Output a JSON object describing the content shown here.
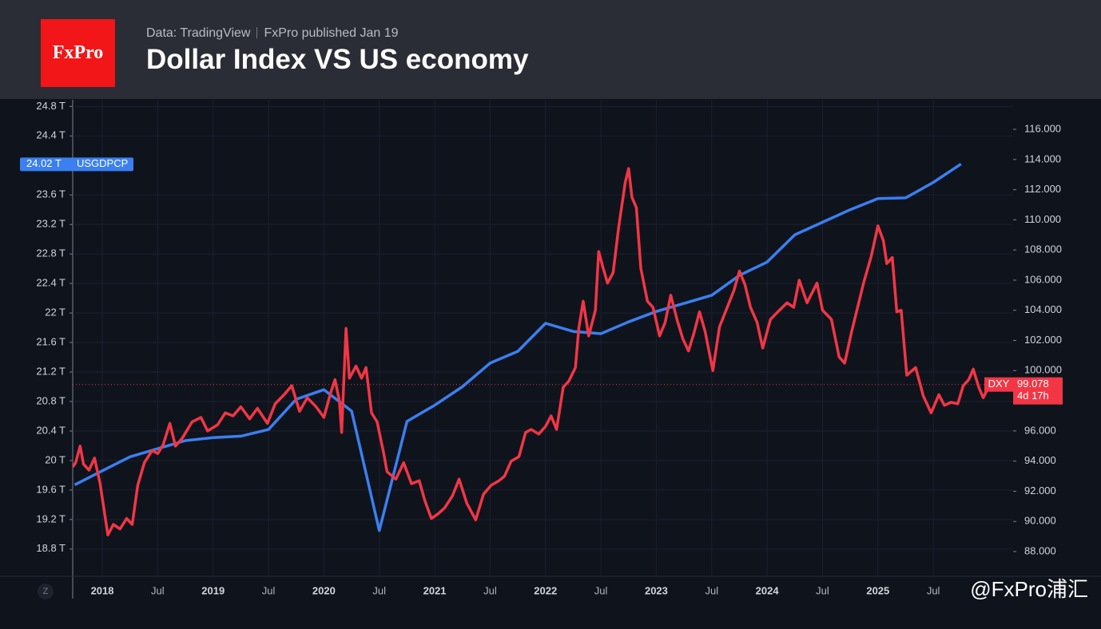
{
  "header": {
    "logo": "FxPro",
    "source": "Data: TradingView",
    "published": "FxPro published Jan 19"
  },
  "watermark": "@FxPro浦汇",
  "zoom_button": "Z",
  "chart_data": {
    "type": "line",
    "title": "Dollar Index VS US economy",
    "xlim": [
      2017.733,
      2026.22
    ],
    "xticks": [
      {
        "value": 2018,
        "label": "2018"
      },
      {
        "value": 2018.5,
        "label": "Jul"
      },
      {
        "value": 2019,
        "label": "2019"
      },
      {
        "value": 2019.5,
        "label": "Jul"
      },
      {
        "value": 2020,
        "label": "2020"
      },
      {
        "value": 2020.5,
        "label": "Jul"
      },
      {
        "value": 2021,
        "label": "2021"
      },
      {
        "value": 2021.5,
        "label": "Jul"
      },
      {
        "value": 2022,
        "label": "2022"
      },
      {
        "value": 2022.5,
        "label": "Jul"
      },
      {
        "value": 2023,
        "label": "2023"
      },
      {
        "value": 2023.5,
        "label": "Jul"
      },
      {
        "value": 2024,
        "label": "2024"
      },
      {
        "value": 2024.5,
        "label": "Jul"
      },
      {
        "value": 2025,
        "label": "2025"
      },
      {
        "value": 2025.5,
        "label": "Jul"
      }
    ],
    "ylim": [
      18.43,
      24.89
    ],
    "yticks": [
      {
        "value": 18.8,
        "label": "18.8 T"
      },
      {
        "value": 19.2,
        "label": "19.2 T"
      },
      {
        "value": 19.6,
        "label": "19.6 T"
      },
      {
        "value": 20,
        "label": "20 T"
      },
      {
        "value": 20.4,
        "label": "20.4 T"
      },
      {
        "value": 20.8,
        "label": "20.8 T"
      },
      {
        "value": 21.2,
        "label": "21.2 T"
      },
      {
        "value": 21.6,
        "label": "21.6 T"
      },
      {
        "value": 22,
        "label": "22 T"
      },
      {
        "value": 22.4,
        "label": "22.4 T"
      },
      {
        "value": 22.8,
        "label": "22.8 T"
      },
      {
        "value": 23.2,
        "label": "23.2 T"
      },
      {
        "value": 23.6,
        "label": "23.6 T"
      },
      {
        "value": 24.4,
        "label": "24.4 T"
      },
      {
        "value": 24.8,
        "label": "24.8 T"
      }
    ],
    "y2lim": [
      86.36,
      117.96
    ],
    "y2ticks": [
      {
        "value": 88,
        "label": "88.000"
      },
      {
        "value": 90,
        "label": "90.000"
      },
      {
        "value": 92,
        "label": "92.000"
      },
      {
        "value": 94,
        "label": "94.000"
      },
      {
        "value": 96,
        "label": "96.000"
      },
      {
        "value": 100,
        "label": "100.000"
      },
      {
        "value": 102,
        "label": "102.000"
      },
      {
        "value": 104,
        "label": "104.000"
      },
      {
        "value": 106,
        "label": "106.000"
      },
      {
        "value": 108,
        "label": "108.000"
      },
      {
        "value": 110,
        "label": "110.000"
      },
      {
        "value": 112,
        "label": "112.000"
      },
      {
        "value": 114,
        "label": "114.000"
      },
      {
        "value": 116,
        "label": "116.000"
      }
    ],
    "grid": true,
    "series": [
      {
        "name": "USGDPCP",
        "color": "#3b7ff0",
        "axis": "y",
        "last_label": "24.02 T",
        "x": [
          2017.75,
          2018.0,
          2018.25,
          2018.5,
          2018.75,
          2019.0,
          2019.25,
          2019.5,
          2019.75,
          2020.0,
          2020.25,
          2020.5,
          2020.75,
          2021.0,
          2021.25,
          2021.5,
          2021.75,
          2022.0,
          2022.25,
          2022.5,
          2022.75,
          2023.0,
          2023.25,
          2023.5,
          2023.75,
          2024.0,
          2024.25,
          2024.5,
          2024.75,
          2025.0,
          2025.25,
          2025.5,
          2025.75
        ],
        "values": [
          19.67,
          19.86,
          20.05,
          20.16,
          20.27,
          20.31,
          20.33,
          20.42,
          20.83,
          20.96,
          20.67,
          19.05,
          20.53,
          20.75,
          21.0,
          21.32,
          21.48,
          21.86,
          21.75,
          21.72,
          21.88,
          22.02,
          22.13,
          22.24,
          22.51,
          22.69,
          23.06,
          23.23,
          23.4,
          23.55,
          23.56,
          23.77,
          24.02
        ]
      },
      {
        "name": "DXY",
        "color": "#f23645",
        "axis": "y2",
        "last_label": "99.078",
        "countdown": "4d 17h",
        "x": [
          2017.733,
          2017.76,
          2017.8,
          2017.83,
          2017.88,
          2017.93,
          2017.98,
          2018.05,
          2018.1,
          2018.16,
          2018.22,
          2018.27,
          2018.32,
          2018.38,
          2018.45,
          2018.5,
          2018.55,
          2018.61,
          2018.66,
          2018.72,
          2018.81,
          2018.89,
          2018.95,
          2019.04,
          2019.11,
          2019.18,
          2019.25,
          2019.33,
          2019.4,
          2019.49,
          2019.56,
          2019.64,
          2019.71,
          2019.78,
          2019.85,
          2019.93,
          2020.0,
          2020.06,
          2020.1,
          2020.14,
          2020.16,
          2020.2,
          2020.23,
          2020.29,
          2020.34,
          2020.38,
          2020.43,
          2020.48,
          2020.54,
          2020.57,
          2020.65,
          2020.72,
          2020.79,
          2020.86,
          2020.91,
          2020.97,
          2021.03,
          2021.09,
          2021.16,
          2021.22,
          2021.29,
          2021.37,
          2021.44,
          2021.51,
          2021.58,
          2021.63,
          2021.69,
          2021.76,
          2021.82,
          2021.87,
          2021.94,
          2022.0,
          2022.05,
          2022.1,
          2022.16,
          2022.21,
          2022.27,
          2022.3,
          2022.34,
          2022.39,
          2022.45,
          2022.48,
          2022.52,
          2022.56,
          2022.61,
          2022.66,
          2022.72,
          2022.75,
          2022.78,
          2022.82,
          2022.86,
          2022.92,
          2022.97,
          2023.03,
          2023.08,
          2023.13,
          2023.19,
          2023.24,
          2023.29,
          2023.34,
          2023.39,
          2023.44,
          2023.51,
          2023.57,
          2023.64,
          2023.7,
          2023.75,
          2023.8,
          2023.85,
          2023.91,
          2023.96,
          2024.03,
          2024.11,
          2024.18,
          2024.24,
          2024.29,
          2024.36,
          2024.45,
          2024.5,
          2024.58,
          2024.65,
          2024.7,
          2024.76,
          2024.79,
          2024.87,
          2024.94,
          2025.0,
          2025.05,
          2025.08,
          2025.13,
          2025.17,
          2025.21,
          2025.26,
          2025.34,
          2025.41,
          2025.48,
          2025.55,
          2025.6,
          2025.66,
          2025.72,
          2025.77,
          2025.82,
          2025.86,
          2025.91,
          2025.95,
          2026.01
        ],
        "values": [
          93.6,
          93.9,
          95.0,
          93.8,
          93.4,
          94.2,
          92.5,
          89.1,
          89.8,
          89.5,
          90.2,
          89.8,
          92.4,
          93.9,
          94.7,
          94.5,
          95.1,
          96.5,
          95.0,
          95.5,
          96.6,
          96.9,
          96.0,
          96.4,
          97.2,
          97.0,
          97.6,
          96.8,
          97.5,
          96.5,
          97.8,
          98.4,
          99.0,
          97.3,
          98.2,
          97.6,
          96.9,
          98.5,
          99.4,
          98.0,
          95.9,
          102.8,
          99.5,
          100.3,
          99.5,
          100.2,
          97.2,
          96.6,
          94.5,
          93.3,
          92.8,
          93.9,
          92.5,
          92.7,
          91.4,
          90.2,
          90.5,
          90.9,
          91.7,
          92.8,
          91.2,
          90.1,
          91.8,
          92.4,
          92.7,
          93.0,
          94.0,
          94.3,
          95.9,
          96.1,
          95.8,
          96.3,
          97.0,
          96.1,
          98.9,
          99.3,
          100.2,
          102.8,
          104.6,
          102.3,
          104.0,
          107.9,
          106.8,
          105.8,
          106.5,
          109.5,
          112.5,
          113.4,
          111.5,
          110.8,
          106.8,
          104.6,
          104.2,
          102.3,
          103.2,
          105.0,
          103.3,
          102.1,
          101.3,
          102.5,
          103.9,
          102.6,
          100.0,
          102.9,
          104.2,
          105.3,
          106.6,
          105.7,
          104.2,
          103.2,
          101.5,
          103.4,
          104.0,
          104.5,
          104.2,
          106.0,
          104.5,
          105.8,
          104.0,
          103.4,
          100.9,
          100.5,
          102.5,
          103.4,
          105.8,
          107.6,
          109.6,
          108.6,
          107.1,
          107.5,
          103.9,
          104.0,
          99.7,
          100.2,
          98.3,
          97.2,
          98.4,
          97.7,
          97.9,
          97.8,
          99.0,
          99.4,
          100.1,
          98.9,
          98.2,
          99.078
        ]
      }
    ]
  }
}
